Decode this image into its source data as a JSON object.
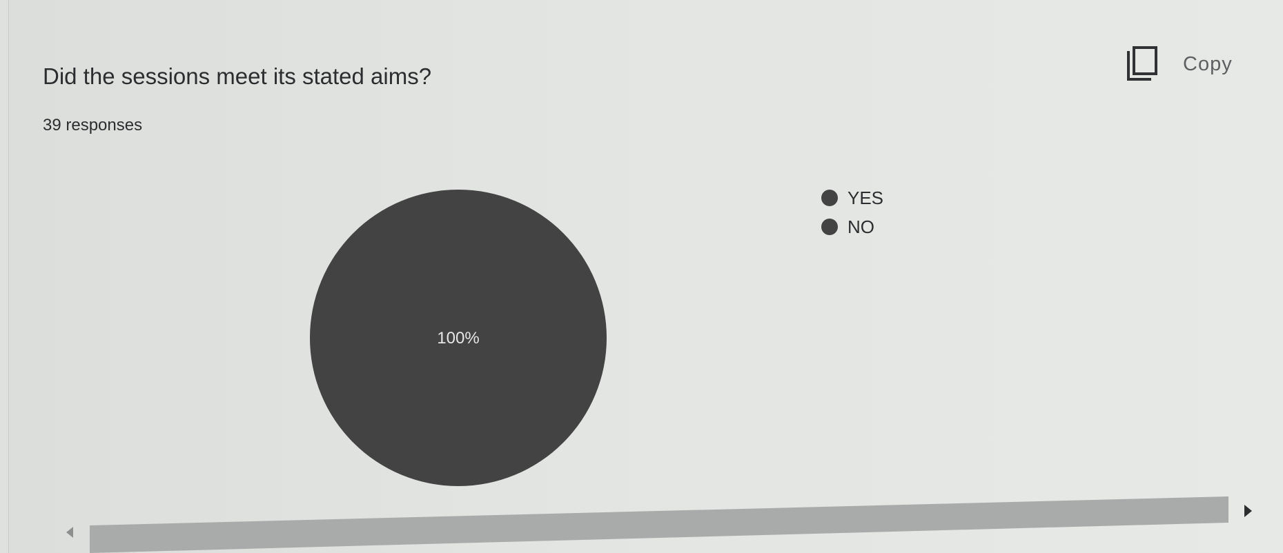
{
  "question": {
    "title": "Did the sessions meet its stated aims?",
    "responses": "39 responses"
  },
  "copy_button": {
    "label": "Copy",
    "icon": "copy-icon"
  },
  "chart_data": {
    "type": "pie",
    "labels": [
      "YES",
      "NO"
    ],
    "values": [
      100,
      0
    ],
    "unit": "%",
    "data_labels": [
      "100%",
      ""
    ],
    "colors": [
      "#434343",
      "#434343"
    ],
    "legend_position": "right"
  },
  "scrollbar": {
    "left_arrow": "scroll-left-icon",
    "right_arrow": "scroll-right-icon",
    "thumb_fraction": 1.0
  }
}
